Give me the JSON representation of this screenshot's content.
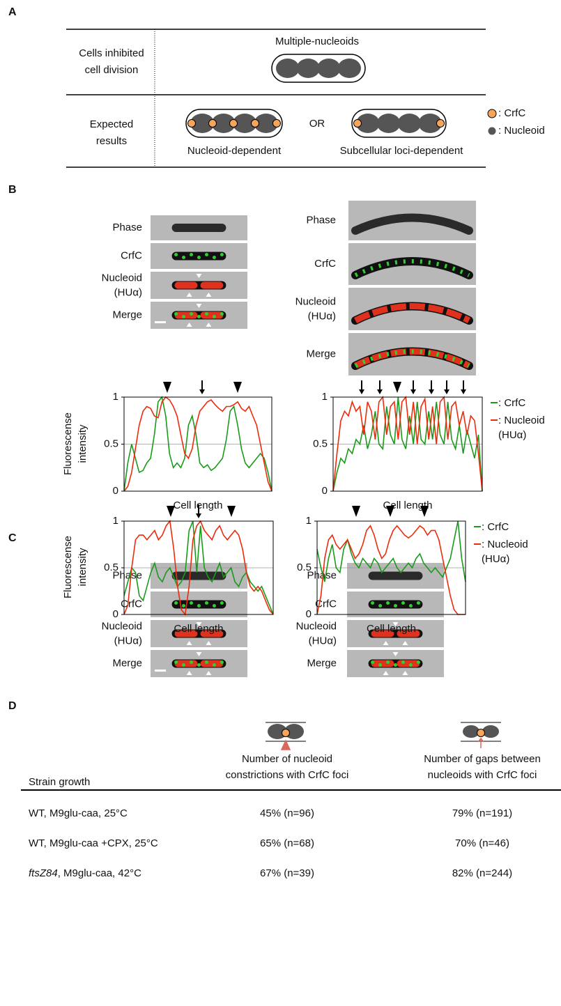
{
  "panel_a": {
    "label": "A",
    "row1_label": [
      "Cells inhibited",
      "cell division"
    ],
    "row1_title": "Multiple-nucleoids",
    "row2_label": [
      "Expected",
      "results"
    ],
    "or": "OR",
    "left_caption": "Nucleoid-dependent",
    "right_caption": "Subcellular loci-dependent",
    "legend": [
      ": CrfC",
      ": Nucleoid"
    ]
  },
  "panel_b": {
    "label": "B",
    "left_images": [
      "Phase",
      "CrfC",
      [
        "Nucleoid",
        "(HUα)"
      ],
      "Merge"
    ],
    "right_images": [
      "Phase",
      "CrfC",
      [
        "Nucleoid",
        "(HUα)"
      ],
      "Merge"
    ]
  },
  "panel_c": {
    "label": "C",
    "left_images": [
      "Phase",
      "CrfC",
      [
        "Nucleoid",
        "(HUα)"
      ],
      "Merge"
    ],
    "right_images": [
      "Phase",
      "CrfC",
      [
        "Nucleoid",
        "(HUα)"
      ],
      "Merge"
    ]
  },
  "chart_data": [
    {
      "type": "line",
      "ylabel": "Fluorescense intensity",
      "xlabel": "Cell length",
      "ylim": [
        0,
        1
      ],
      "yticks": [
        0,
        0.5,
        1
      ],
      "grid": true,
      "series": [
        {
          "color": "#1a9a1a",
          "values": [
            0,
            0.3,
            0.5,
            0.35,
            0.2,
            0.22,
            0.3,
            0.35,
            0.6,
            0.95,
            1,
            0.8,
            0.4,
            0.25,
            0.3,
            0.25,
            0.35,
            0.7,
            0.8,
            0.6,
            0.3,
            0.25,
            0.28,
            0.22,
            0.25,
            0.3,
            0.35,
            0.55,
            0.85,
            0.9,
            0.7,
            0.45,
            0.3,
            0.25,
            0.3,
            0.35,
            0.4,
            0.35,
            0.2,
            0
          ]
        },
        {
          "color": "#ee2a0a",
          "values": [
            0,
            0.05,
            0.2,
            0.45,
            0.7,
            0.85,
            0.9,
            0.88,
            0.8,
            0.78,
            0.95,
            1,
            0.97,
            0.9,
            0.8,
            0.6,
            0.4,
            0.35,
            0.45,
            0.7,
            0.85,
            0.9,
            0.95,
            0.97,
            0.92,
            0.88,
            0.85,
            0.9,
            0.9,
            0.92,
            0.95,
            0.88,
            0.85,
            0.9,
            0.8,
            0.7,
            0.5,
            0.3,
            0.1,
            0
          ]
        }
      ]
    },
    {
      "type": "line",
      "xlabel": "Cell length",
      "ylim": [
        0,
        1
      ],
      "yticks": [
        0,
        0.5,
        1
      ],
      "grid": true,
      "legend": "right",
      "series": [
        {
          "name": ": CrfC",
          "color": "#1a9a1a",
          "values": [
            0,
            0.2,
            0.35,
            0.3,
            0.45,
            0.4,
            0.55,
            0.5,
            0.7,
            0.45,
            0.6,
            0.85,
            0.5,
            0.45,
            0.9,
            0.6,
            0.5,
            1,
            0.55,
            0.45,
            0.8,
            0.5,
            0.95,
            0.55,
            0.5,
            0.85,
            0.55,
            0.95,
            0.6,
            0.5,
            0.95,
            0.55,
            0.45,
            0.7,
            0.4,
            0.65,
            0.5,
            0.35,
            0.6,
            0
          ]
        },
        {
          "name": ": Nucleoid (HUα)",
          "color": "#ee2a0a",
          "values": [
            0,
            0.4,
            0.75,
            0.85,
            0.8,
            0.95,
            0.85,
            0.9,
            0.6,
            0.95,
            0.85,
            0.55,
            0.95,
            1,
            0.6,
            0.9,
            0.95,
            0.55,
            0.95,
            1,
            0.6,
            0.95,
            0.5,
            0.9,
            0.98,
            0.55,
            0.9,
            0.5,
            0.95,
            1,
            0.55,
            0.9,
            0.95,
            0.7,
            0.85,
            0.6,
            0.8,
            0.75,
            0.4,
            0
          ]
        }
      ]
    },
    {
      "type": "line",
      "ylabel": "Fluorescense intensity",
      "xlabel": "Cell length",
      "ylim": [
        0,
        1
      ],
      "yticks": [
        0,
        0.5,
        1
      ],
      "grid": true,
      "series": [
        {
          "color": "#1a9a1a",
          "values": [
            0.2,
            0.35,
            0.5,
            0.45,
            0.2,
            0.15,
            0.3,
            0.45,
            0.55,
            0.4,
            0.35,
            0.45,
            0.5,
            0.4,
            0.3,
            0.35,
            0.45,
            0.9,
            1,
            0.45,
            0.95,
            0.5,
            0.4,
            0.35,
            0.45,
            0.55,
            0.4,
            0.45,
            0.5,
            0.35,
            0.3,
            0.4,
            0.45,
            0.35,
            0.3,
            0.25,
            0.3,
            0.2,
            0.1,
            0
          ]
        },
        {
          "color": "#ee2a0a",
          "values": [
            0,
            0.1,
            0.5,
            0.8,
            0.85,
            0.85,
            0.8,
            0.85,
            0.9,
            0.8,
            0.85,
            0.95,
            1,
            0.7,
            0.3,
            0.05,
            0,
            0.3,
            0.8,
            0.95,
            1,
            0.9,
            0.85,
            0.8,
            0.9,
            0.95,
            0.85,
            0.8,
            0.85,
            0.9,
            0.85,
            0.7,
            0.45,
            0.3,
            0.25,
            0.3,
            0.25,
            0.15,
            0.05,
            0
          ]
        }
      ]
    },
    {
      "type": "line",
      "xlabel": "Cell length",
      "ylim": [
        0,
        1
      ],
      "yticks": [
        0,
        0.5,
        1
      ],
      "grid": true,
      "legend": "right",
      "series": [
        {
          "name": ": CrfC",
          "color": "#1a9a1a",
          "values": [
            0.7,
            0.5,
            0.35,
            0.6,
            0.75,
            0.5,
            0.45,
            0.7,
            0.8,
            0.65,
            0.55,
            0.5,
            0.6,
            0.55,
            0.5,
            0.6,
            0.55,
            0.45,
            0.5,
            0.55,
            0.6,
            0.5,
            0.45,
            0.5,
            0.55,
            0.5,
            0.6,
            0.65,
            0.55,
            0.5,
            0.45,
            0.5,
            0.45,
            0.4,
            0.5,
            0.6,
            0.8,
            1,
            0.6,
            0.35
          ]
        },
        {
          "name": ": Nucleoid (HUα)",
          "color": "#ee2a0a",
          "values": [
            0,
            0.2,
            0.6,
            0.8,
            0.85,
            0.75,
            0.7,
            0.75,
            0.8,
            0.7,
            0.6,
            0.65,
            0.75,
            0.9,
            0.95,
            0.85,
            0.7,
            0.6,
            0.65,
            0.8,
            0.9,
            0.95,
            0.9,
            0.85,
            0.82,
            0.85,
            0.9,
            0.95,
            0.92,
            0.85,
            0.9,
            0.9,
            0.8,
            0.6,
            0.4,
            0.2,
            0.05,
            0,
            0,
            0
          ]
        }
      ]
    }
  ],
  "panel_d": {
    "label": "D",
    "columns": [
      "Strain growth",
      [
        "Number of nucleoid",
        "constrictions with CrfC foci"
      ],
      [
        "Number of gaps between",
        "nucleoids with CrfC foci"
      ]
    ],
    "rows": [
      [
        "WT, M9glu-caa, 25°C",
        "45% (n=96)",
        "79% (n=191)"
      ],
      [
        "WT, M9glu-caa +CPX, 25°C",
        "65% (n=68)",
        "70% (n=46)"
      ],
      [
        {
          "italic": "ftsZ84",
          "text": ", M9glu-caa, 42°C"
        },
        "67% (n=39)",
        "82% (n=244)"
      ]
    ]
  }
}
